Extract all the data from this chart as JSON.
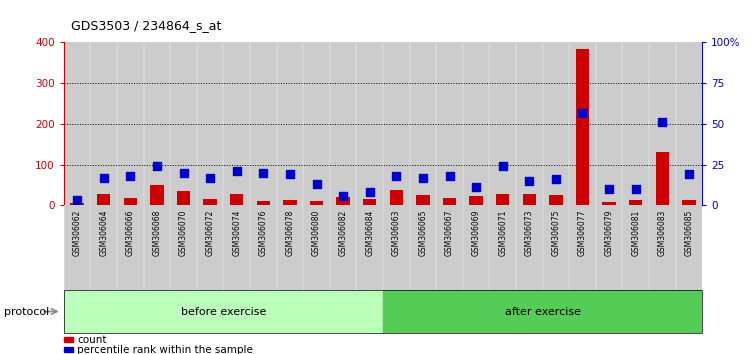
{
  "title": "GDS3503 / 234864_s_at",
  "samples": [
    "GSM306062",
    "GSM306064",
    "GSM306066",
    "GSM306068",
    "GSM306070",
    "GSM306072",
    "GSM306074",
    "GSM306076",
    "GSM306078",
    "GSM306080",
    "GSM306082",
    "GSM306084",
    "GSM306063",
    "GSM306065",
    "GSM306067",
    "GSM306069",
    "GSM306071",
    "GSM306073",
    "GSM306075",
    "GSM306077",
    "GSM306079",
    "GSM306081",
    "GSM306083",
    "GSM306085"
  ],
  "count_values": [
    5,
    28,
    18,
    50,
    35,
    15,
    28,
    10,
    12,
    10,
    20,
    15,
    38,
    25,
    18,
    22,
    28,
    28,
    25,
    385,
    8,
    12,
    130,
    12
  ],
  "percentile_values": [
    3,
    17,
    18,
    24,
    20,
    17,
    21,
    20,
    19,
    13,
    6,
    8,
    18,
    17,
    18,
    11,
    24,
    15,
    16,
    57,
    10,
    10,
    51,
    19
  ],
  "before_exercise_count": 12,
  "after_exercise_count": 12,
  "before_label": "before exercise",
  "after_label": "after exercise",
  "protocol_label": "protocol",
  "legend_count": "count",
  "legend_percentile": "percentile rank within the sample",
  "left_axis_color": "#cc0000",
  "right_axis_color": "#0000cc",
  "bar_color": "#cc0000",
  "dot_color": "#0000cc",
  "ylim_left": [
    0,
    400
  ],
  "ylim_right": [
    0,
    100
  ],
  "yticks_left": [
    0,
    100,
    200,
    300,
    400
  ],
  "ytick_labels_left": [
    "0",
    "100",
    "200",
    "300",
    "400"
  ],
  "ytick_labels_right": [
    "0",
    "25",
    "50",
    "75",
    "100%"
  ],
  "before_bg": "#bbffbb",
  "after_bg": "#55cc55",
  "col_bg": "#cccccc",
  "grid_color": "#000000"
}
